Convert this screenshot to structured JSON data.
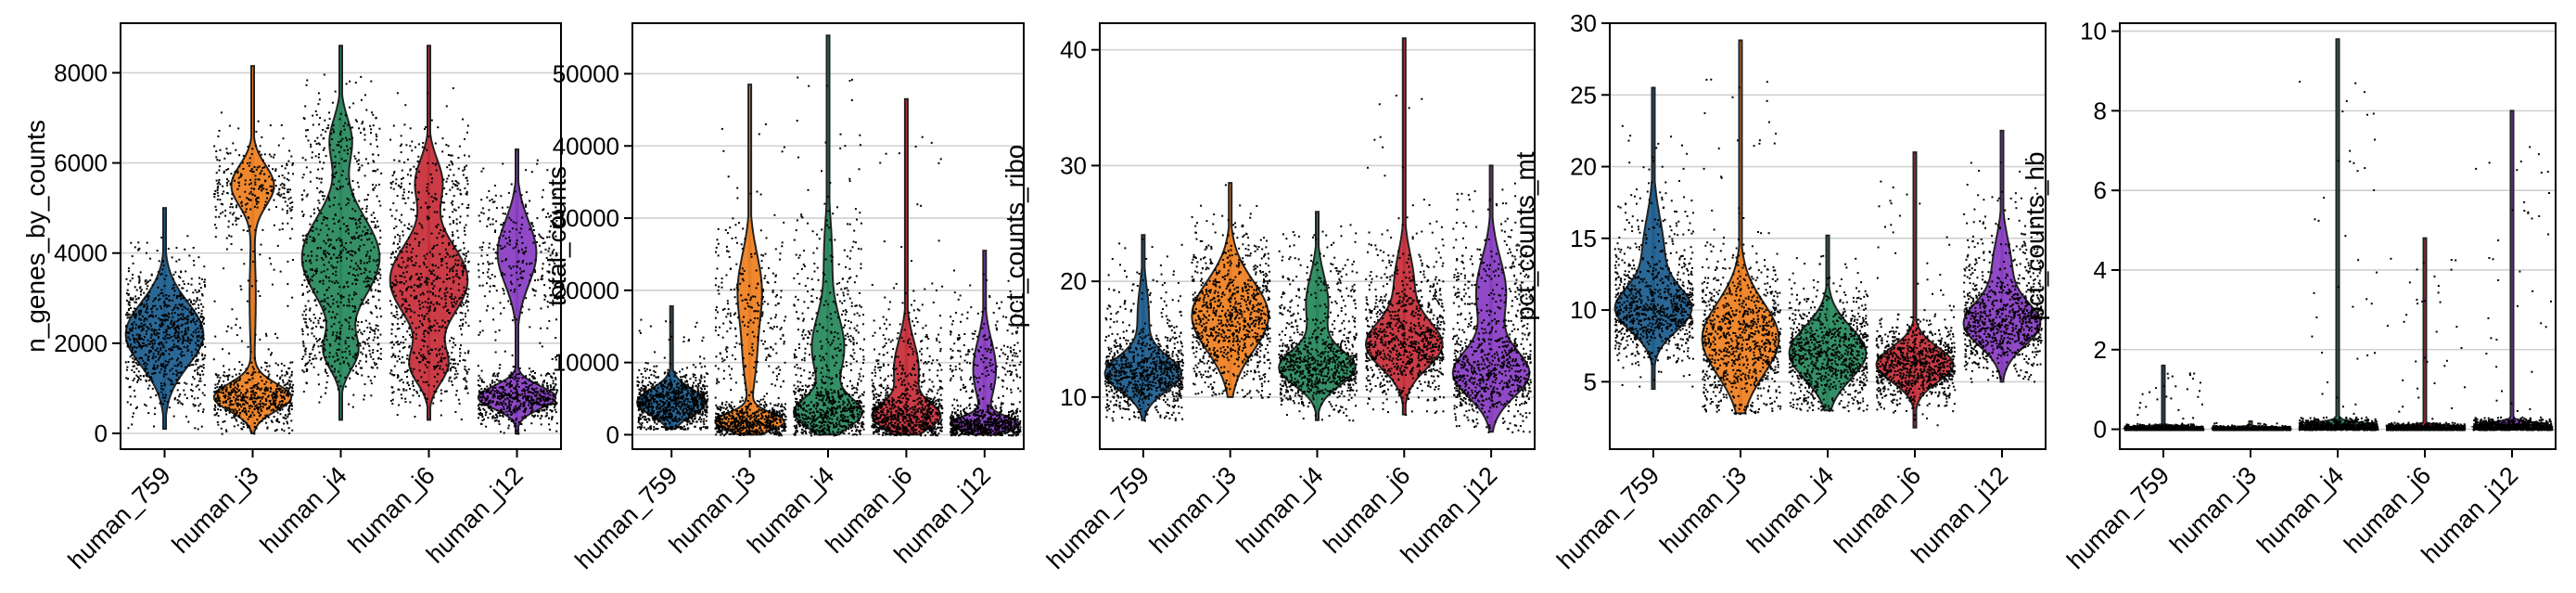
{
  "chart_data": [
    {
      "type": "violin",
      "ylabel": "n_genes_by_counts",
      "categories": [
        "human_759",
        "human_j3",
        "human_j4",
        "human_j6",
        "human_j12"
      ],
      "ylim": [
        -350,
        9100
      ],
      "yticks": [
        0,
        2000,
        4000,
        6000,
        8000
      ],
      "ytick_labels": [
        "0",
        "2000",
        "4000",
        "6000",
        "8000"
      ],
      "grid": true,
      "series": [
        {
          "category": "human_759",
          "min": 100,
          "max": 5000,
          "modes": [
            [
              2200,
              700,
              1
            ]
          ],
          "spread": 420
        },
        {
          "category": "human_j3",
          "min": 0,
          "max": 8150,
          "modes": [
            [
              800,
              300,
              1
            ],
            [
              5500,
              450,
              0.55
            ],
            [
              3000,
              1200,
              0.08
            ]
          ],
          "spread": 800
        },
        {
          "category": "human_j4",
          "min": 300,
          "max": 8600,
          "modes": [
            [
              3900,
              900,
              0.9
            ],
            [
              1800,
              400,
              0.35
            ],
            [
              6500,
              500,
              0.25
            ]
          ],
          "spread": 900
        },
        {
          "category": "human_j6",
          "min": 300,
          "max": 8600,
          "modes": [
            [
              3400,
              800,
              0.9
            ],
            [
              1500,
              400,
              0.4
            ],
            [
              5600,
              500,
              0.3
            ]
          ],
          "spread": 800
        },
        {
          "category": "human_j12",
          "min": 0,
          "max": 6300,
          "modes": [
            [
              800,
              250,
              1
            ],
            [
              4000,
              700,
              0.5
            ]
          ],
          "spread": 700
        }
      ]
    },
    {
      "type": "violin",
      "ylabel": "total_counts",
      "categories": [
        "human_759",
        "human_j3",
        "human_j4",
        "human_j6",
        "human_j12"
      ],
      "ylim": [
        -2000,
        57000
      ],
      "yticks": [
        0,
        10000,
        20000,
        30000,
        40000,
        50000
      ],
      "ytick_labels": [
        "0",
        "10000",
        "20000",
        "30000",
        "40000",
        "50000"
      ],
      "grid": true,
      "series": [
        {
          "category": "human_759",
          "min": 800,
          "max": 17800,
          "modes": [
            [
              4500,
              1800,
              1
            ]
          ],
          "spread": 1500
        },
        {
          "category": "human_j3",
          "min": 0,
          "max": 48500,
          "modes": [
            [
              1800,
              1200,
              1
            ],
            [
              20000,
              5000,
              0.35
            ],
            [
              10000,
              4000,
              0.15
            ]
          ],
          "spread": 5000
        },
        {
          "category": "human_j4",
          "min": 0,
          "max": 55300,
          "modes": [
            [
              3000,
              2000,
              1
            ],
            [
              12000,
              4500,
              0.5
            ],
            [
              25000,
              5000,
              0.12
            ]
          ],
          "spread": 5000
        },
        {
          "category": "human_j6",
          "min": 0,
          "max": 46500,
          "modes": [
            [
              2500,
              1800,
              1
            ],
            [
              9000,
              4000,
              0.4
            ]
          ],
          "spread": 4500
        },
        {
          "category": "human_j12",
          "min": 0,
          "max": 25500,
          "modes": [
            [
              1500,
              1000,
              1
            ],
            [
              9000,
              4000,
              0.35
            ]
          ],
          "spread": 3500
        }
      ]
    },
    {
      "type": "violin",
      "ylabel": "pct_counts_ribo",
      "categories": [
        "human_759",
        "human_j3",
        "human_j4",
        "human_j6",
        "human_j12"
      ],
      "ylim": [
        5.5,
        42.3
      ],
      "yticks": [
        10,
        20,
        30,
        40
      ],
      "ytick_labels": [
        "10",
        "20",
        "30",
        "40"
      ],
      "grid": true,
      "series": [
        {
          "category": "human_759",
          "min": 8,
          "max": 24,
          "modes": [
            [
              12,
              1.5,
              1
            ],
            [
              17,
              2.5,
              0.15
            ]
          ],
          "spread": 1.5
        },
        {
          "category": "human_j3",
          "min": 10,
          "max": 28.5,
          "modes": [
            [
              17,
              3,
              1
            ]
          ],
          "spread": 2.5
        },
        {
          "category": "human_j4",
          "min": 8,
          "max": 26,
          "modes": [
            [
              12.5,
              1.5,
              1
            ],
            [
              18,
              2.5,
              0.3
            ]
          ],
          "spread": 2
        },
        {
          "category": "human_j6",
          "min": 8.5,
          "max": 41,
          "modes": [
            [
              14.5,
              2,
              1
            ],
            [
              20,
              2.5,
              0.25
            ]
          ],
          "spread": 2.2
        },
        {
          "category": "human_j12",
          "min": 7,
          "max": 30,
          "modes": [
            [
              12,
              2,
              1
            ],
            [
              19,
              3,
              0.4
            ]
          ],
          "spread": 2.5
        }
      ]
    },
    {
      "type": "violin",
      "ylabel": "pct_counts_mt",
      "categories": [
        "human_759",
        "human_j3",
        "human_j4",
        "human_j6",
        "human_j12"
      ],
      "ylim": [
        0.3,
        30
      ],
      "yticks": [
        5,
        10,
        15,
        20,
        25,
        30
      ],
      "ytick_labels": [
        "5",
        "10",
        "15",
        "20",
        "25",
        "30"
      ],
      "grid": true,
      "series": [
        {
          "category": "human_759",
          "min": 4.5,
          "max": 25.5,
          "modes": [
            [
              10,
              1.5,
              1
            ],
            [
              14,
              2.5,
              0.3
            ]
          ],
          "spread": 2
        },
        {
          "category": "human_j3",
          "min": 2.8,
          "max": 28.8,
          "modes": [
            [
              8,
              2.5,
              1
            ]
          ],
          "spread": 2.2
        },
        {
          "category": "human_j4",
          "min": 3,
          "max": 15.2,
          "modes": [
            [
              7,
              1.8,
              1
            ]
          ],
          "spread": 1.6
        },
        {
          "category": "human_j6",
          "min": 1.8,
          "max": 21,
          "modes": [
            [
              6.2,
              1.2,
              1
            ]
          ],
          "spread": 1.3
        },
        {
          "category": "human_j12",
          "min": 5,
          "max": 22.5,
          "modes": [
            [
              9,
              1.5,
              1
            ],
            [
              13,
              2,
              0.25
            ]
          ],
          "spread": 1.7
        }
      ]
    },
    {
      "type": "violin",
      "ylabel": "pct_counts_hb",
      "categories": [
        "human_759",
        "human_j3",
        "human_j4",
        "human_j6",
        "human_j12"
      ],
      "ylim": [
        -0.5,
        10.2
      ],
      "yticks": [
        0,
        2,
        4,
        6,
        8,
        10
      ],
      "ytick_labels": [
        "0",
        "2",
        "4",
        "6",
        "8",
        "10"
      ],
      "grid": true,
      "series": [
        {
          "category": "human_759",
          "min": 0,
          "max": 1.6,
          "modes": [
            [
              0.03,
              0.04,
              1
            ]
          ],
          "spread": 0.05
        },
        {
          "category": "human_j3",
          "min": 0,
          "max": 0.2,
          "modes": [
            [
              0.02,
              0.03,
              1
            ]
          ],
          "spread": 0.03
        },
        {
          "category": "human_j4",
          "min": 0,
          "max": 9.8,
          "modes": [
            [
              0.08,
              0.08,
              1
            ]
          ],
          "spread": 0.2
        },
        {
          "category": "human_j6",
          "min": 0,
          "max": 4.8,
          "modes": [
            [
              0.04,
              0.05,
              1
            ]
          ],
          "spread": 0.08
        },
        {
          "category": "human_j12",
          "min": 0,
          "max": 8,
          "modes": [
            [
              0.08,
              0.08,
              1
            ]
          ],
          "spread": 0.15
        }
      ]
    }
  ],
  "colors": [
    "#1f5f8f",
    "#ef8224",
    "#2a8a5e",
    "#c8313d",
    "#8a3fc4"
  ]
}
